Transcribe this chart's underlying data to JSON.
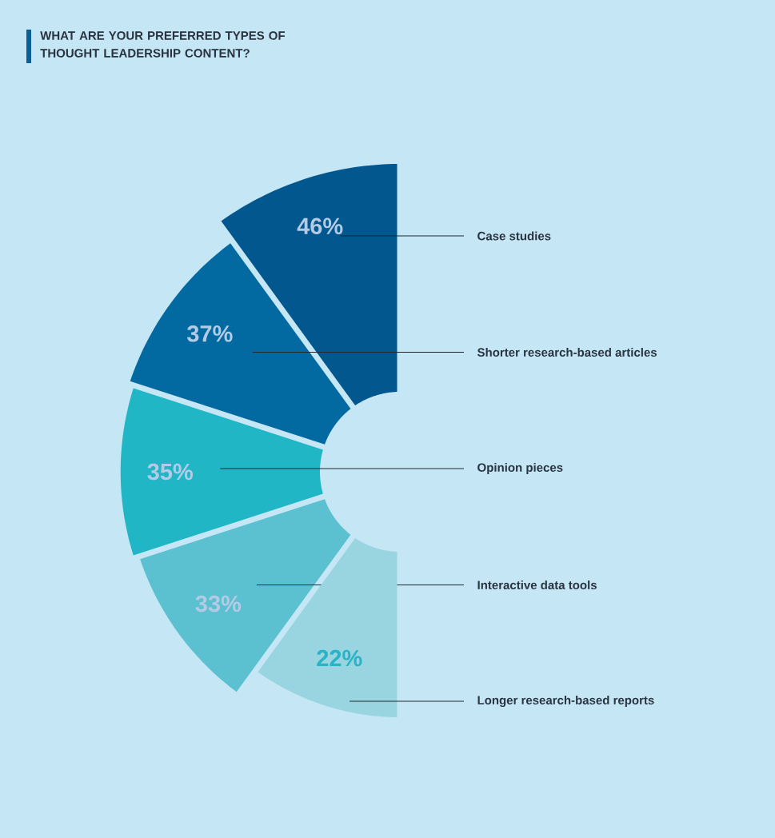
{
  "chart_data": {
    "type": "other",
    "title": "WHAT ARE YOUR PREFERRED TYPES OF THOUGHT LEADERSHIP CONTENT?",
    "categories": [
      "Case studies",
      "Shorter research-based articles",
      "Opinion pieces",
      "Interactive data tools",
      "Longer research-based reports"
    ],
    "values": [
      46,
      37,
      35,
      33,
      22
    ],
    "value_labels": [
      "46%",
      "37%",
      "35%",
      "33%",
      "22%"
    ],
    "colors": [
      "#02578e",
      "#0369a1",
      "#20b6c5",
      "#5bc0cf",
      "#98d5e0"
    ]
  }
}
